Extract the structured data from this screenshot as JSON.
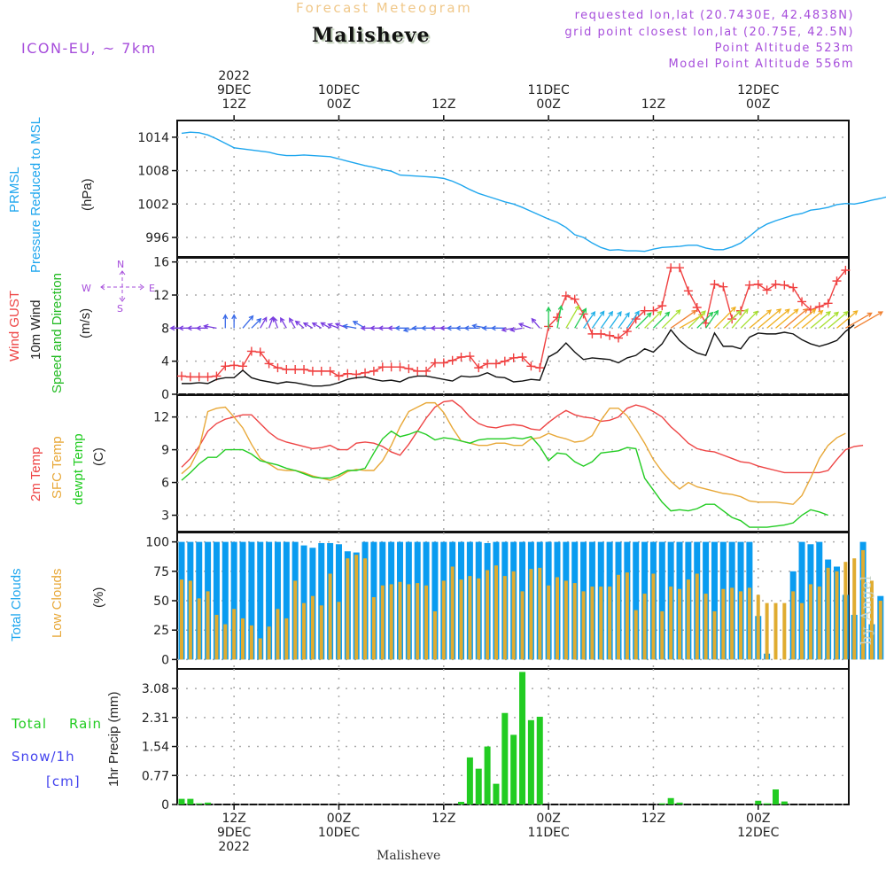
{
  "header": {
    "title": "Forecast Meteogram",
    "location": "Malisheve",
    "model": "ICON-EU, ~ 7km",
    "requested": "requested lon,lat (20.7430E, 42.4838N)",
    "grid_point": "grid point closest lon,lat (20.75E, 42.5N)",
    "point_altitude": "Point Altitude 523m",
    "model_altitude": "Model Point Altitude 556m",
    "footer_location": "Malisheve",
    "watermark": "by Angel"
  },
  "time_axis": {
    "top_labels": [
      {
        "l1": "2022",
        "l2": "9DEC",
        "l3": "12Z"
      },
      {
        "l1": "",
        "l2": "10DEC",
        "l3": "00Z"
      },
      {
        "l1": "",
        "l2": "",
        "l3": "12Z"
      },
      {
        "l1": "",
        "l2": "11DEC",
        "l3": "00Z"
      },
      {
        "l1": "",
        "l2": "",
        "l3": "12Z"
      },
      {
        "l1": "",
        "l2": "12DEC",
        "l3": "00Z"
      }
    ],
    "bottom_labels": [
      {
        "l1": "12Z",
        "l2": "9DEC",
        "l3": "2022"
      },
      {
        "l1": "00Z",
        "l2": "10DEC",
        "l3": ""
      },
      {
        "l1": "12Z",
        "l2": "",
        "l3": ""
      },
      {
        "l1": "00Z",
        "l2": "11DEC",
        "l3": ""
      },
      {
        "l1": "12Z",
        "l2": "",
        "l3": ""
      },
      {
        "l1": "00Z",
        "l2": "12DEC",
        "l3": ""
      }
    ],
    "start": "2022-12-09 06Z",
    "hours_from_start_of_major_ticks": [
      6,
      18,
      30,
      42,
      54,
      66
    ]
  },
  "panels": {
    "pressure": {
      "label1": "PRMSL",
      "label2": "Pressure Reduced to MSL",
      "unit": "(hPa)",
      "color": "#1ea6ee"
    },
    "wind": {
      "label_gust": "Wind GUST",
      "label_wind": "10m Wind",
      "label_dir": "Speed and Direction",
      "unit": "(m/s)",
      "compass": {
        "n": "N",
        "s": "S",
        "e": "E",
        "w": "W"
      }
    },
    "temp": {
      "label_2m": "2m Temp",
      "label_sfc": "SFC Temp",
      "label_dew": "dewpt Temp",
      "unit": "(C)"
    },
    "clouds": {
      "label_total": "Total Clouds",
      "label_low": "Low Clouds",
      "unit": "(%)"
    },
    "precip": {
      "label_rain1": "Total",
      "label_rain2": "Rain",
      "label_snow": "Snow/1h",
      "label_cm": "[cm]",
      "unit": "1hr Precip (mm)"
    }
  },
  "chart_data": [
    {
      "type": "line",
      "title": "PRMSL Pressure Reduced to MSL",
      "ylabel": "hPa",
      "ylim": [
        992.5,
        1017
      ],
      "yticks": [
        996,
        1002,
        1008,
        1014
      ],
      "x_hours_step": 1,
      "series": [
        {
          "name": "PRMSL",
          "color": "#1ea6ee",
          "values": [
            1014.7,
            1014.9,
            1014.8,
            1014.4,
            1013.7,
            1012.9,
            1012.1,
            1011.9,
            1011.7,
            1011.5,
            1011.3,
            1010.9,
            1010.7,
            1010.7,
            1010.8,
            1010.7,
            1010.6,
            1010.5,
            1010.1,
            1009.7,
            1009.3,
            1008.9,
            1008.6,
            1008.2,
            1007.9,
            1007.2,
            1007.1,
            1007.0,
            1006.9,
            1006.8,
            1006.6,
            1006.1,
            1005.4,
            1004.6,
            1003.9,
            1003.4,
            1002.9,
            1002.4,
            1002.0,
            1001.4,
            1000.7,
            1000.0,
            999.3,
            998.7,
            997.8,
            996.5,
            996.0,
            995.0,
            994.2,
            993.7,
            993.8,
            993.6,
            993.6,
            993.5,
            993.9,
            994.2,
            994.3,
            994.4,
            994.6,
            994.6,
            994.1,
            993.8,
            993.8,
            994.3,
            995.0,
            996.2,
            997.5,
            998.4,
            999.0,
            999.5,
            1000.0,
            1000.3,
            1000.9,
            1001.1,
            1001.4,
            1001.9,
            1002.1,
            1002.0,
            1002.3,
            1002.7,
            1003.0,
            1003.4,
            1003.6,
            1003.5,
            1003.0
          ]
        }
      ]
    },
    {
      "type": "line",
      "title": "Wind GUST / 10m Wind Speed and Direction",
      "ylabel": "m/s",
      "ylim": [
        0,
        16.5
      ],
      "yticks": [
        0,
        4,
        8,
        12,
        16
      ],
      "x_hours_step": 1,
      "series": [
        {
          "name": "Wind GUST",
          "color": "#f04040",
          "marker": "+",
          "values": [
            2.2,
            2.1,
            2.1,
            2.1,
            2.2,
            3.4,
            3.5,
            3.4,
            5.2,
            5.1,
            3.7,
            3.2,
            3.0,
            3.0,
            3.0,
            2.8,
            2.8,
            2.8,
            2.2,
            2.5,
            2.4,
            2.6,
            2.8,
            3.3,
            3.3,
            3.3,
            3.1,
            2.8,
            2.8,
            3.8,
            3.8,
            4.1,
            4.5,
            4.6,
            3.2,
            3.7,
            3.7,
            4.0,
            4.4,
            4.5,
            3.4,
            3.2,
            8.2,
            9.3,
            11.9,
            11.5,
            9.7,
            7.3,
            7.3,
            7.1,
            6.8,
            7.6,
            9.1,
            10.1,
            10.1,
            10.7,
            15.3,
            15.3,
            12.5,
            10.5,
            8.6,
            13.3,
            13.0,
            9.1,
            10.1,
            13.2,
            13.3,
            12.6,
            13.3,
            13.2,
            12.9,
            11.2,
            10.2,
            10.6,
            11.0,
            13.7,
            15.0
          ]
        },
        {
          "name": "10m Wind",
          "color": "#111111",
          "values": [
            1.3,
            1.3,
            1.4,
            1.3,
            1.8,
            2.0,
            2.0,
            2.9,
            2.0,
            1.7,
            1.5,
            1.3,
            1.5,
            1.4,
            1.2,
            1.0,
            1.0,
            1.1,
            1.4,
            1.8,
            2.0,
            2.1,
            1.8,
            1.6,
            1.7,
            1.5,
            2.0,
            2.2,
            2.2,
            2.0,
            1.8,
            1.6,
            2.2,
            2.1,
            2.2,
            2.6,
            2.1,
            2.0,
            1.5,
            1.6,
            1.8,
            1.7,
            4.5,
            5.1,
            6.2,
            5.1,
            4.2,
            4.4,
            4.3,
            4.2,
            3.8,
            4.4,
            4.7,
            5.5,
            5.1,
            6.1,
            7.8,
            6.5,
            5.6,
            5.0,
            4.7,
            7.4,
            5.8,
            5.8,
            5.5,
            6.9,
            7.4,
            7.3,
            7.3,
            7.5,
            7.3,
            6.6,
            6.1,
            5.8,
            6.1,
            6.5,
            7.6,
            8.4
          ]
        },
        {
          "name": "Direction (deg, meteorological from)",
          "color": "#8040e0",
          "values": [
            90,
            90,
            90,
            90,
            100,
            180,
            180,
            220,
            225,
            210,
            200,
            160,
            150,
            150,
            130,
            120,
            120,
            120,
            110,
            110,
            100,
            120,
            90,
            90,
            90,
            90,
            90,
            80,
            90,
            90,
            90,
            90,
            90,
            90,
            90,
            100,
            90,
            90,
            80,
            80,
            110,
            140,
            180,
            190,
            210,
            210,
            215,
            215,
            215,
            215,
            215,
            215,
            225,
            225,
            225,
            225,
            235,
            240,
            225,
            225,
            215,
            225,
            225,
            220,
            225,
            230,
            230,
            230,
            230,
            230,
            230,
            230,
            230,
            230,
            230,
            230,
            240,
            240
          ]
        }
      ]
    },
    {
      "type": "line",
      "title": "Temperatures",
      "ylabel": "C",
      "ylim": [
        1.5,
        14
      ],
      "yticks": [
        3,
        6,
        9,
        12
      ],
      "x_hours_step": 1,
      "series": [
        {
          "name": "2m Temp",
          "color": "#ee4444",
          "values": [
            7.4,
            8.2,
            9.3,
            10.7,
            11.4,
            11.8,
            12.0,
            12.2,
            12.2,
            11.4,
            10.6,
            10.0,
            9.7,
            9.5,
            9.3,
            9.1,
            9.2,
            9.4,
            9.0,
            9.0,
            9.6,
            9.7,
            9.6,
            9.3,
            8.8,
            8.5,
            9.5,
            10.7,
            11.9,
            12.9,
            13.4,
            13.5,
            12.9,
            12.0,
            11.4,
            11.1,
            11.0,
            11.2,
            11.3,
            11.2,
            10.9,
            10.8,
            11.5,
            12.1,
            12.6,
            12.2,
            12.0,
            11.9,
            11.6,
            11.7,
            12.0,
            12.8,
            13.1,
            12.9,
            12.5,
            12.0,
            11.1,
            10.4,
            9.6,
            9.1,
            8.9,
            8.8,
            8.5,
            8.2,
            7.9,
            7.8,
            7.5,
            7.3,
            7.1,
            6.9,
            6.9,
            6.9,
            6.9,
            6.9,
            7.1,
            8.1,
            9.0,
            9.3,
            9.4
          ]
        },
        {
          "name": "SFC Temp",
          "color": "#e8a838",
          "values": [
            6.8,
            7.5,
            9.1,
            12.5,
            12.8,
            12.9,
            12.0,
            11.0,
            9.5,
            8.2,
            7.7,
            7.2,
            7.1,
            7.1,
            6.9,
            6.6,
            6.4,
            6.2,
            6.5,
            7.0,
            7.2,
            7.1,
            7.1,
            8.0,
            9.4,
            11.1,
            12.5,
            12.9,
            13.3,
            13.3,
            12.4,
            11.0,
            9.8,
            9.6,
            9.4,
            9.4,
            9.6,
            9.6,
            9.4,
            9.4,
            10.0,
            10.1,
            10.5,
            10.2,
            10.0,
            9.7,
            9.8,
            10.3,
            11.7,
            12.8,
            12.8,
            12.1,
            10.9,
            9.6,
            8.1,
            7.0,
            6.1,
            5.4,
            6.0,
            5.6,
            5.4,
            5.2,
            5.0,
            4.9,
            4.7,
            4.3,
            4.2,
            4.2,
            4.2,
            4.1,
            4.0,
            4.8,
            6.4,
            8.2,
            9.4,
            10.1,
            10.5
          ]
        },
        {
          "name": "dewpt Temp",
          "color": "#22cc22",
          "values": [
            6.2,
            6.9,
            7.7,
            8.3,
            8.3,
            9.0,
            9.0,
            9.0,
            8.6,
            8.0,
            7.8,
            7.6,
            7.3,
            7.1,
            6.8,
            6.5,
            6.4,
            6.4,
            6.7,
            7.1,
            7.1,
            7.3,
            8.7,
            10.0,
            10.7,
            10.2,
            10.4,
            10.7,
            10.4,
            9.9,
            10.1,
            10.0,
            9.8,
            9.6,
            9.9,
            10.0,
            10.0,
            10.0,
            10.1,
            10.0,
            10.2,
            9.3,
            8.0,
            8.7,
            8.6,
            7.9,
            7.5,
            7.9,
            8.7,
            8.8,
            8.9,
            9.2,
            9.1,
            6.4,
            5.3,
            4.2,
            3.4,
            3.5,
            3.4,
            3.6,
            4.0,
            4.0,
            3.4,
            2.8,
            2.5,
            1.9,
            1.9,
            1.9,
            2.0,
            2.1,
            2.3,
            3.0,
            3.5,
            3.3,
            3.0
          ]
        }
      ]
    },
    {
      "type": "bar",
      "title": "Total Clouds / Low Clouds",
      "ylabel": "%",
      "ylim": [
        -8,
        108
      ],
      "yticks": [
        0,
        25,
        50,
        75,
        100
      ],
      "x_hours_step": 1,
      "series": [
        {
          "name": "Total Clouds",
          "color": "#0a9cf0",
          "values": [
            100,
            100,
            100,
            100,
            100,
            100,
            100,
            100,
            100,
            100,
            100,
            100,
            100,
            100,
            97,
            95,
            99,
            99,
            98,
            92,
            91,
            100,
            100,
            100,
            100,
            100,
            100,
            100,
            100,
            100,
            100,
            100,
            100,
            100,
            100,
            99,
            100,
            100,
            100,
            100,
            100,
            100,
            100,
            100,
            100,
            100,
            100,
            100,
            100,
            100,
            100,
            100,
            100,
            100,
            100,
            100,
            100,
            100,
            100,
            100,
            100,
            100,
            100,
            100,
            100,
            100,
            37,
            5,
            0,
            0,
            75,
            100,
            98,
            100,
            85,
            79,
            55,
            38,
            100,
            30,
            54,
            44,
            59,
            50,
            55,
            54,
            32,
            42
          ]
        },
        {
          "name": "Low Clouds",
          "color": "#e0ac30",
          "values": [
            68,
            67,
            52,
            58,
            38,
            30,
            43,
            35,
            29,
            18,
            28,
            43,
            35,
            67,
            48,
            54,
            46,
            73,
            49,
            86,
            89,
            86,
            53,
            63,
            64,
            66,
            64,
            65,
            63,
            41,
            67,
            79,
            68,
            71,
            69,
            76,
            80,
            71,
            75,
            58,
            77,
            78,
            63,
            70,
            67,
            65,
            58,
            62,
            62,
            62,
            72,
            74,
            42,
            56,
            73,
            41,
            62,
            60,
            68,
            73,
            56,
            41,
            60,
            61,
            58,
            61,
            55,
            48,
            48,
            48,
            58,
            48,
            64,
            62,
            78,
            75,
            83,
            86,
            93,
            67,
            50,
            60,
            76,
            73,
            63,
            58,
            74,
            80,
            56,
            58,
            42,
            41,
            65,
            28,
            58,
            56
          ]
        }
      ]
    },
    {
      "type": "bar",
      "title": "1hr Precip",
      "ylabel": "1hr Precip (mm)",
      "ylim": [
        0,
        3.6
      ],
      "yticks": [
        0,
        0.77,
        1.54,
        2.31,
        3.08
      ],
      "x_hours_step": 1,
      "series": [
        {
          "name": "Total Rain",
          "color": "#22cc22",
          "values": [
            0.15,
            0.15,
            0.03,
            0.05,
            0,
            0,
            0,
            0,
            0,
            0,
            0,
            0,
            0,
            0,
            0,
            0,
            0,
            0,
            0,
            0,
            0,
            0,
            0,
            0,
            0,
            0,
            0,
            0,
            0,
            0,
            0,
            0,
            0.07,
            1.25,
            0.95,
            1.54,
            0.55,
            2.43,
            1.85,
            3.52,
            2.24,
            2.33,
            0,
            0,
            0,
            0,
            0,
            0,
            0,
            0,
            0,
            0,
            0,
            0,
            0,
            0.03,
            0.17,
            0.05,
            0,
            0,
            0,
            0,
            0,
            0,
            0,
            0,
            0.1,
            0.03,
            0.4,
            0.08,
            0,
            0,
            0,
            0,
            0,
            0,
            0,
            0,
            0
          ]
        },
        {
          "name": "Snow/1h",
          "color": "#4444ee",
          "values": []
        }
      ]
    }
  ]
}
